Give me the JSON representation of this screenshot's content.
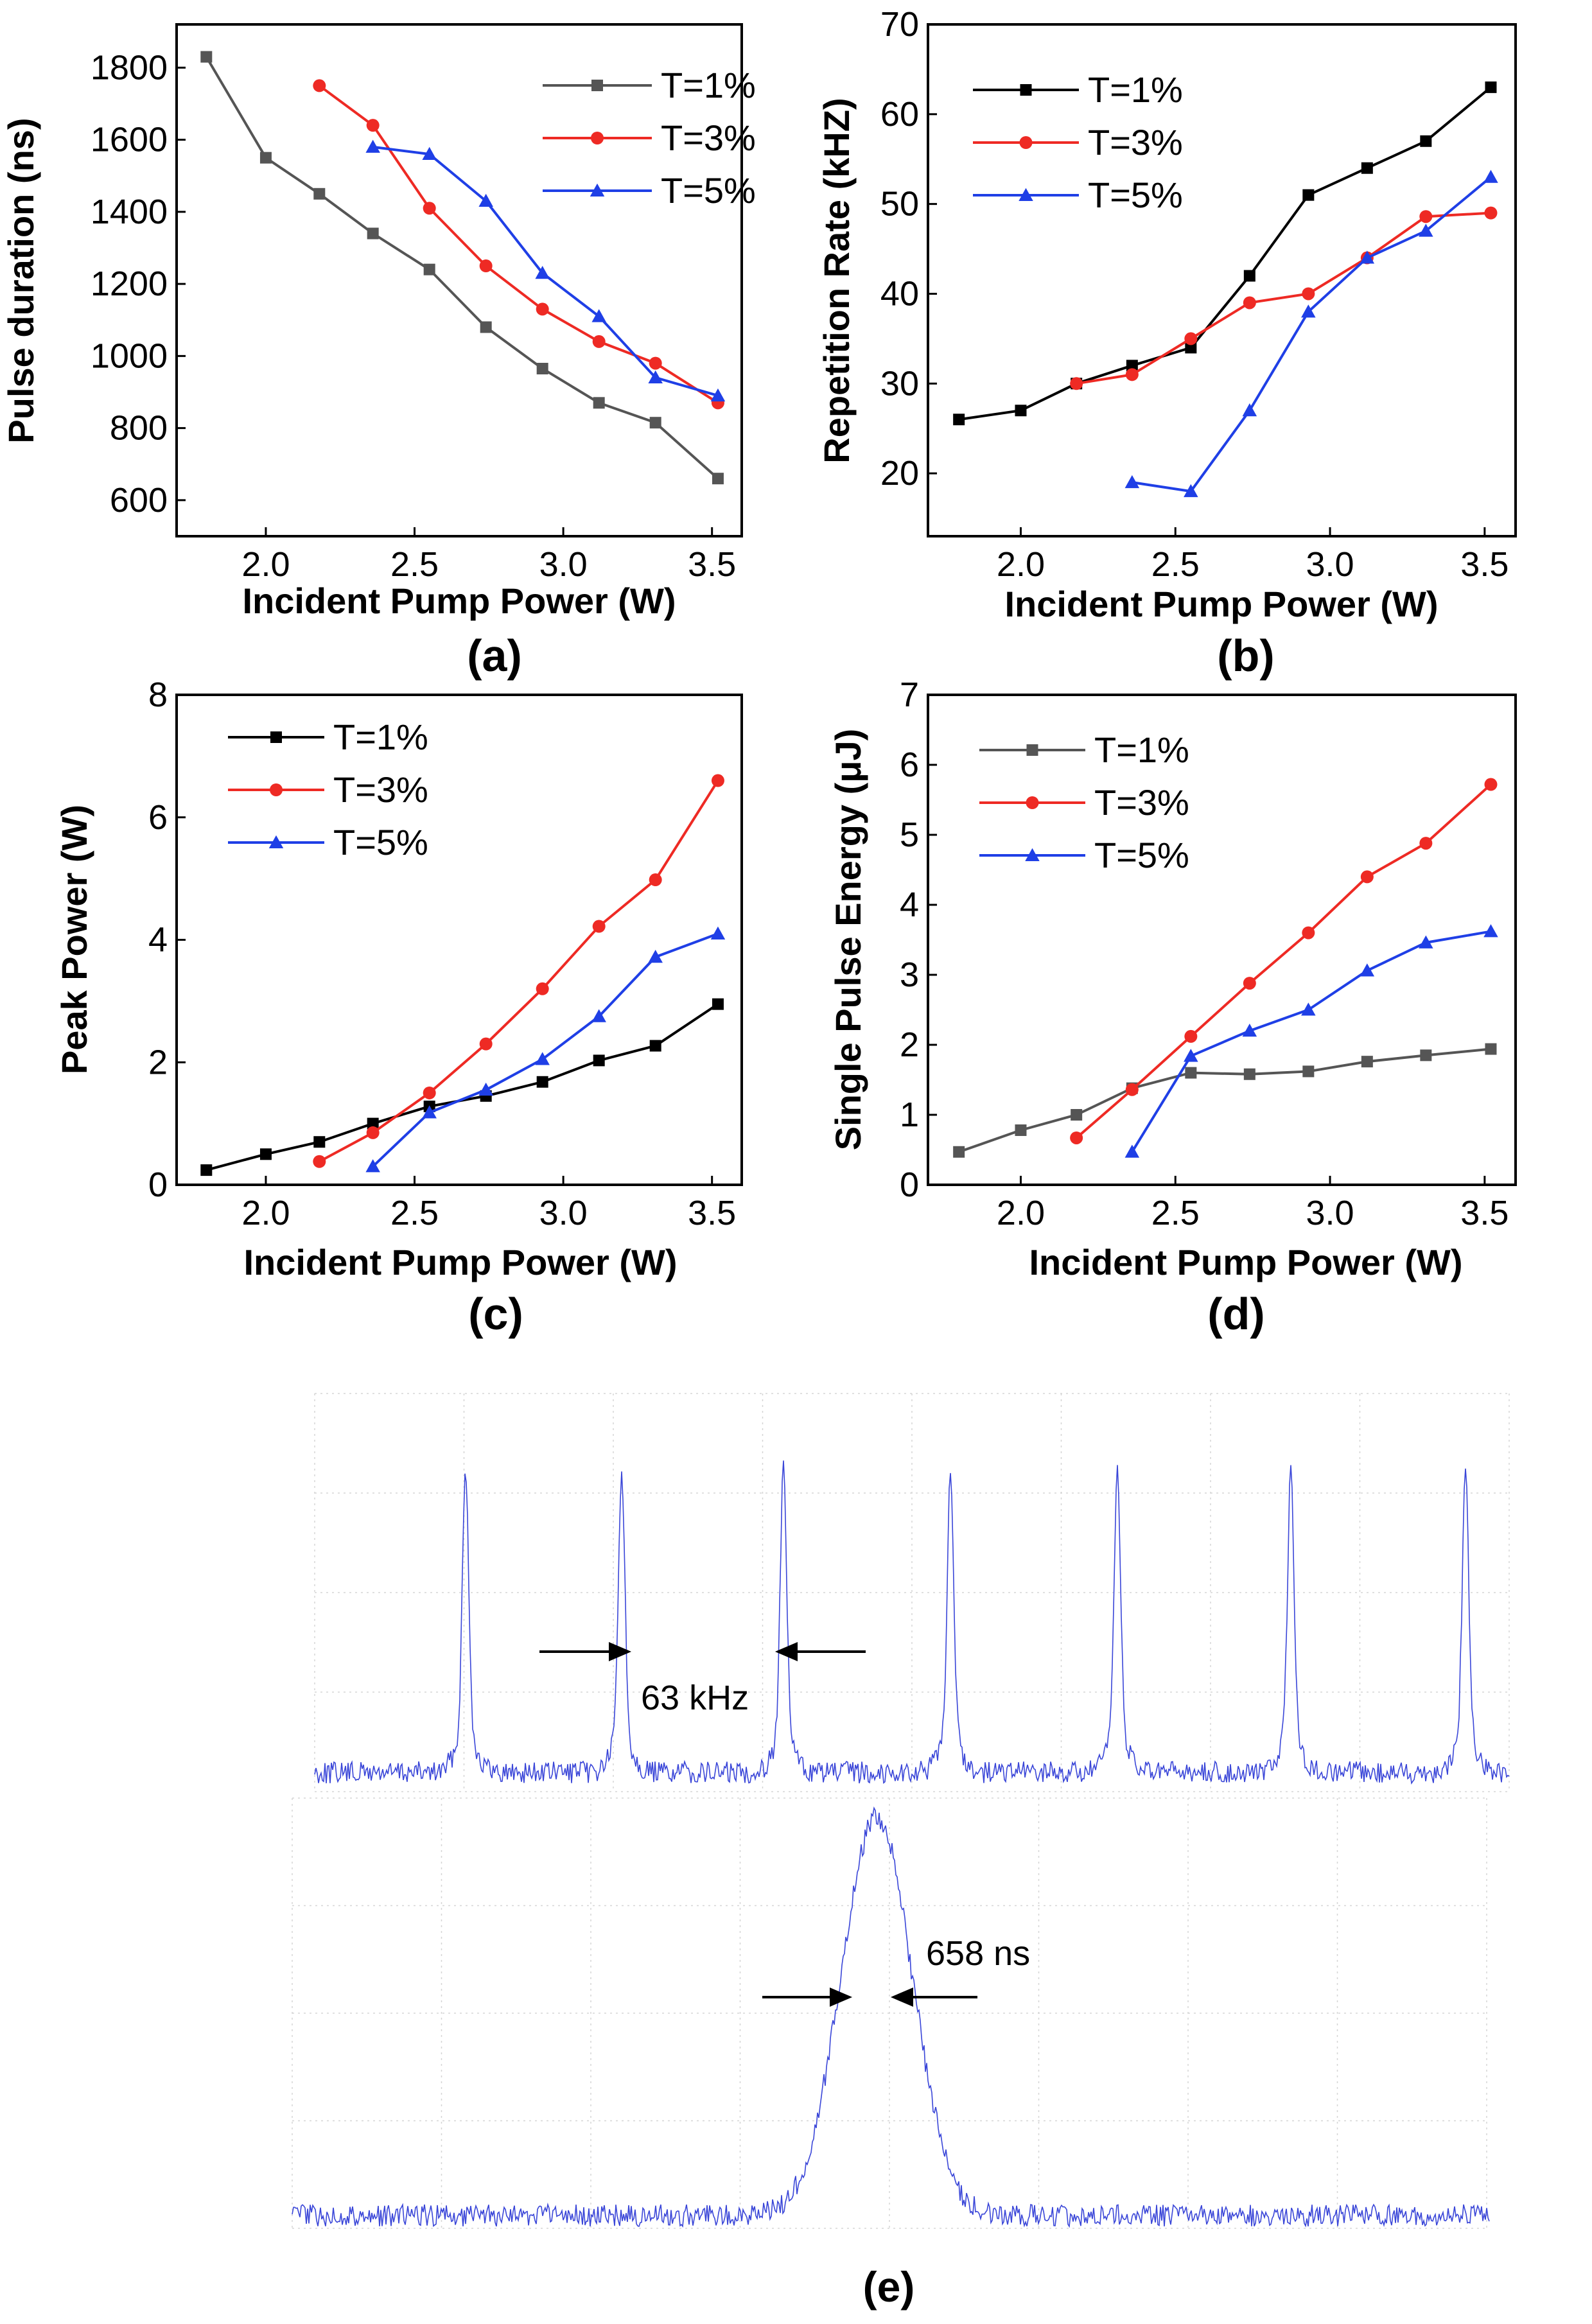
{
  "colors": {
    "t1": "#000000",
    "t3": "#ee2a24",
    "t5": "#1f3fe6",
    "scope": "#3a46d8"
  },
  "chart_data": [
    {
      "panel": "(a)",
      "type": "line",
      "xlabel": "Incident Pump Power (W)",
      "ylabel": "Pulse duration (ns)",
      "xlim": [
        1.7,
        3.6
      ],
      "ylim": [
        500,
        1920
      ],
      "xticks": [
        2.0,
        2.5,
        3.0,
        3.5
      ],
      "yticks": [
        600,
        800,
        1000,
        1200,
        1400,
        1600,
        1800
      ],
      "legend_position": "top-right",
      "grid": false,
      "series": [
        {
          "name": "T=1%",
          "color": "#555555",
          "marker": "square",
          "x": [
            1.8,
            2.0,
            2.18,
            2.36,
            2.55,
            2.74,
            2.93,
            3.12,
            3.31,
            3.52
          ],
          "y": [
            1830,
            1550,
            1450,
            1340,
            1240,
            1080,
            965,
            870,
            815,
            660
          ]
        },
        {
          "name": "T=3%",
          "color": "#ee2a24",
          "marker": "circle",
          "x": [
            2.18,
            2.36,
            2.55,
            2.74,
            2.93,
            3.12,
            3.31,
            3.52
          ],
          "y": [
            1750,
            1640,
            1410,
            1250,
            1130,
            1040,
            980,
            870
          ]
        },
        {
          "name": "T=5%",
          "color": "#1f3fe6",
          "marker": "triangle",
          "x": [
            2.36,
            2.55,
            2.74,
            2.93,
            3.12,
            3.31,
            3.52
          ],
          "y": [
            1580,
            1560,
            1430,
            1230,
            1110,
            940,
            890
          ]
        }
      ]
    },
    {
      "panel": "(b)",
      "type": "line",
      "xlabel": "Incident Pump Power (W)",
      "ylabel": "Repetition Rate (kHZ)",
      "xlim": [
        1.7,
        3.6
      ],
      "ylim": [
        13,
        70
      ],
      "xticks": [
        2.0,
        2.5,
        3.0,
        3.5
      ],
      "yticks": [
        20,
        30,
        40,
        50,
        60,
        70
      ],
      "legend_position": "top-left",
      "grid": false,
      "series": [
        {
          "name": "T=1%",
          "color": "#000000",
          "marker": "square",
          "x": [
            1.8,
            2.0,
            2.18,
            2.36,
            2.55,
            2.74,
            2.93,
            3.12,
            3.31,
            3.52
          ],
          "y": [
            26,
            27,
            30,
            32,
            34,
            42,
            51,
            54,
            57,
            63
          ]
        },
        {
          "name": "T=3%",
          "color": "#ee2a24",
          "marker": "circle",
          "x": [
            2.18,
            2.36,
            2.55,
            2.74,
            2.93,
            3.12,
            3.31,
            3.52
          ],
          "y": [
            30,
            31,
            35,
            39,
            40,
            44,
            48.6,
            49
          ]
        },
        {
          "name": "T=5%",
          "color": "#1f3fe6",
          "marker": "triangle",
          "x": [
            2.36,
            2.55,
            2.74,
            2.93,
            3.12,
            3.31,
            3.52
          ],
          "y": [
            19,
            18,
            27,
            38,
            44,
            47,
            53
          ]
        }
      ]
    },
    {
      "panel": "(c)",
      "type": "line",
      "xlabel": "Incident Pump Power (W)",
      "ylabel": "Peak Power (W)",
      "xlim": [
        1.7,
        3.6
      ],
      "ylim": [
        0,
        8
      ],
      "xticks": [
        2.0,
        2.5,
        3.0,
        3.5
      ],
      "yticks": [
        0,
        2,
        4,
        6,
        8
      ],
      "legend_position": "top-left",
      "grid": false,
      "series": [
        {
          "name": "T=1%",
          "color": "#000000",
          "marker": "square",
          "x": [
            1.8,
            2.0,
            2.18,
            2.36,
            2.55,
            2.74,
            2.93,
            3.12,
            3.31,
            3.52
          ],
          "y": [
            0.24,
            0.5,
            0.7,
            1.0,
            1.28,
            1.45,
            1.68,
            2.03,
            2.27,
            2.95
          ]
        },
        {
          "name": "T=3%",
          "color": "#ee2a24",
          "marker": "circle",
          "x": [
            2.18,
            2.36,
            2.55,
            2.74,
            2.93,
            3.12,
            3.31,
            3.52
          ],
          "y": [
            0.38,
            0.85,
            1.5,
            2.3,
            3.2,
            4.22,
            4.98,
            6.6
          ]
        },
        {
          "name": "T=5%",
          "color": "#1f3fe6",
          "marker": "triangle",
          "x": [
            2.36,
            2.55,
            2.74,
            2.93,
            3.12,
            3.31,
            3.52
          ],
          "y": [
            0.3,
            1.18,
            1.55,
            2.05,
            2.75,
            3.72,
            4.1
          ]
        }
      ]
    },
    {
      "panel": "(d)",
      "type": "line",
      "xlabel": "Incident Pump Power (W)",
      "ylabel": "Single Pulse Energy (μJ)",
      "xlim": [
        1.7,
        3.6
      ],
      "ylim": [
        0,
        7
      ],
      "xticks": [
        2.0,
        2.5,
        3.0,
        3.5
      ],
      "yticks": [
        0,
        1,
        2,
        3,
        4,
        5,
        6,
        7
      ],
      "legend_position": "top-left",
      "grid": false,
      "series": [
        {
          "name": "T=1%",
          "color": "#555555",
          "marker": "square",
          "x": [
            1.8,
            2.0,
            2.18,
            2.36,
            2.55,
            2.74,
            2.93,
            3.12,
            3.31,
            3.52
          ],
          "y": [
            0.47,
            0.78,
            1.0,
            1.38,
            1.6,
            1.58,
            1.62,
            1.76,
            1.85,
            1.94
          ]
        },
        {
          "name": "T=3%",
          "color": "#ee2a24",
          "marker": "circle",
          "x": [
            2.18,
            2.36,
            2.55,
            2.74,
            2.93,
            3.12,
            3.31,
            3.52
          ],
          "y": [
            0.67,
            1.36,
            2.12,
            2.88,
            3.6,
            4.4,
            4.88,
            5.72
          ]
        },
        {
          "name": "T=5%",
          "color": "#1f3fe6",
          "marker": "triangle",
          "x": [
            2.36,
            2.55,
            2.74,
            2.93,
            3.12,
            3.31,
            3.52
          ],
          "y": [
            0.47,
            1.84,
            2.2,
            2.5,
            3.06,
            3.46,
            3.62
          ]
        }
      ]
    }
  ],
  "oscilloscope": {
    "panel": "(e)",
    "pulse_train_annotation": "63 kHz",
    "pulse_width_annotation": "658 ns"
  }
}
